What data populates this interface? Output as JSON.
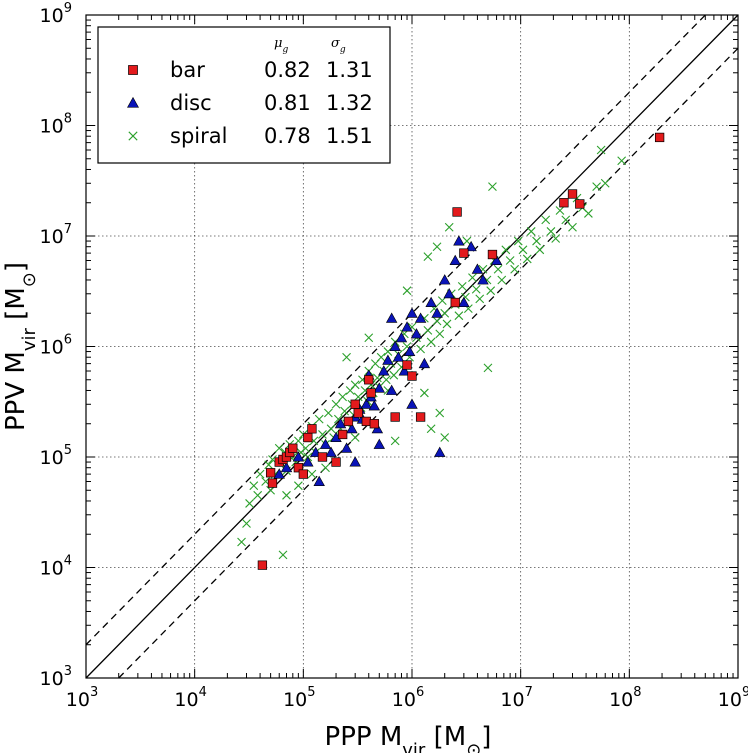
{
  "chart_data": {
    "type": "scatter",
    "xscale": "log",
    "yscale": "log",
    "xlim": [
      1000,
      1000000000
    ],
    "ylim": [
      1000,
      1000000000
    ],
    "grid": true,
    "legend_position": "top-left",
    "x_ticks": [
      {
        "value": 1000,
        "base": "10",
        "exp": "3"
      },
      {
        "value": 10000,
        "base": "10",
        "exp": "4"
      },
      {
        "value": 100000,
        "base": "10",
        "exp": "5"
      },
      {
        "value": 1000000,
        "base": "10",
        "exp": "6"
      },
      {
        "value": 10000000,
        "base": "10",
        "exp": "7"
      },
      {
        "value": 100000000,
        "base": "10",
        "exp": "8"
      },
      {
        "value": 1000000000,
        "base": "10",
        "exp": "9"
      }
    ],
    "y_ticks": [
      {
        "value": 1000,
        "base": "10",
        "exp": "3"
      },
      {
        "value": 10000,
        "base": "10",
        "exp": "4"
      },
      {
        "value": 100000,
        "base": "10",
        "exp": "5"
      },
      {
        "value": 1000000,
        "base": "10",
        "exp": "6"
      },
      {
        "value": 10000000,
        "base": "10",
        "exp": "7"
      },
      {
        "value": 100000000,
        "base": "10",
        "exp": "8"
      },
      {
        "value": 1000000000,
        "base": "10",
        "exp": "9"
      }
    ],
    "xlabel": {
      "main": "PPP  M",
      "sub": "vir",
      "unit_open": "  [M",
      "unit_sub": "⊙",
      "unit_close": "]"
    },
    "ylabel": {
      "main": "PPV  M",
      "sub": "vir",
      "unit_open": "  [M",
      "unit_sub": "⊙",
      "unit_close": "]"
    },
    "lines": [
      {
        "name": "one-to-one",
        "style": "solid",
        "color": "#000000",
        "factor": 1
      },
      {
        "name": "upper-bound",
        "style": "dashed",
        "color": "#000000",
        "factor": 2
      },
      {
        "name": "lower-bound",
        "style": "dashed",
        "color": "#000000",
        "factor": 0.5
      }
    ],
    "legend": {
      "headers": {
        "mu": "μ",
        "mu_sub": "g",
        "sigma": "σ",
        "sigma_sub": "g"
      },
      "entries": [
        {
          "label": "bar",
          "mu": "0.82",
          "sigma": "1.31",
          "marker": "square",
          "color": "#e31a1c"
        },
        {
          "label": "disc",
          "mu": "0.81",
          "sigma": "1.32",
          "marker": "triangle",
          "color": "#0a14b8"
        },
        {
          "label": "spiral",
          "mu": "0.78",
          "sigma": "1.51",
          "marker": "x",
          "color": "#2ca02c"
        }
      ]
    },
    "series": [
      {
        "name": "bar",
        "marker": "square",
        "color": "#e31a1c",
        "points": [
          [
            42000,
            10500
          ],
          [
            50000,
            72000
          ],
          [
            52000,
            58000
          ],
          [
            60000,
            90000
          ],
          [
            65000,
            95000
          ],
          [
            70000,
            100000
          ],
          [
            75000,
            110000
          ],
          [
            80000,
            120000
          ],
          [
            90000,
            80000
          ],
          [
            100000,
            70000
          ],
          [
            110000,
            150000
          ],
          [
            120000,
            180000
          ],
          [
            150000,
            100000
          ],
          [
            200000,
            90000
          ],
          [
            230000,
            160000
          ],
          [
            260000,
            210000
          ],
          [
            300000,
            300000
          ],
          [
            320000,
            250000
          ],
          [
            380000,
            210000
          ],
          [
            400000,
            500000
          ],
          [
            420000,
            380000
          ],
          [
            450000,
            200000
          ],
          [
            700000,
            230000
          ],
          [
            900000,
            680000
          ],
          [
            1000000,
            540000
          ],
          [
            1200000,
            230000
          ],
          [
            2500000,
            2500000
          ],
          [
            2600000,
            16500000
          ],
          [
            3000000,
            7000000
          ],
          [
            5500000,
            6800000
          ],
          [
            25000000,
            20000000
          ],
          [
            30000000,
            24000000
          ],
          [
            35000000,
            19500000
          ],
          [
            190000000,
            78000000
          ]
        ]
      },
      {
        "name": "disc",
        "marker": "triangle",
        "color": "#0a14b8",
        "points": [
          [
            70000,
            80000
          ],
          [
            90000,
            100000
          ],
          [
            110000,
            90000
          ],
          [
            130000,
            110000
          ],
          [
            160000,
            130000
          ],
          [
            180000,
            110000
          ],
          [
            200000,
            150000
          ],
          [
            220000,
            200000
          ],
          [
            250000,
            120000
          ],
          [
            280000,
            180000
          ],
          [
            300000,
            230000
          ],
          [
            330000,
            270000
          ],
          [
            350000,
            220000
          ],
          [
            380000,
            300000
          ],
          [
            420000,
            350000
          ],
          [
            450000,
            290000
          ],
          [
            480000,
            180000
          ],
          [
            500000,
            420000
          ],
          [
            550000,
            600000
          ],
          [
            600000,
            750000
          ],
          [
            650000,
            400000
          ],
          [
            700000,
            1000000
          ],
          [
            750000,
            800000
          ],
          [
            800000,
            1200000
          ],
          [
            850000,
            600000
          ],
          [
            900000,
            1500000
          ],
          [
            950000,
            900000
          ],
          [
            1000000,
            2000000
          ],
          [
            1100000,
            1300000
          ],
          [
            1200000,
            1800000
          ],
          [
            1300000,
            700000
          ],
          [
            1500000,
            2500000
          ],
          [
            1700000,
            2000000
          ],
          [
            1800000,
            110000
          ],
          [
            2000000,
            4000000
          ],
          [
            2200000,
            3000000
          ],
          [
            2500000,
            6000000
          ],
          [
            2700000,
            9000000
          ],
          [
            3000000,
            2500000
          ],
          [
            3500000,
            8000000
          ],
          [
            4000000,
            5000000
          ],
          [
            4500000,
            4000000
          ],
          [
            6000000,
            6000000
          ],
          [
            650000,
            1800000
          ],
          [
            400000,
            550000
          ],
          [
            60000,
            70000
          ],
          [
            140000,
            60000
          ],
          [
            300000,
            90000
          ],
          [
            500000,
            130000
          ],
          [
            1000000,
            300000
          ]
        ]
      },
      {
        "name": "spiral",
        "marker": "x",
        "color": "#2ca02c",
        "points": [
          [
            27000,
            17000
          ],
          [
            30000,
            25000
          ],
          [
            32000,
            38000
          ],
          [
            35000,
            55000
          ],
          [
            38000,
            45000
          ],
          [
            40000,
            70000
          ],
          [
            45000,
            60000
          ],
          [
            48000,
            85000
          ],
          [
            50000,
            50000
          ],
          [
            52000,
            95000
          ],
          [
            55000,
            70000
          ],
          [
            60000,
            120000
          ],
          [
            62000,
            90000
          ],
          [
            65000,
            13000
          ],
          [
            68000,
            110000
          ],
          [
            70000,
            75000
          ],
          [
            75000,
            130000
          ],
          [
            80000,
            100000
          ],
          [
            85000,
            90000
          ],
          [
            90000,
            140000
          ],
          [
            95000,
            110000
          ],
          [
            100000,
            160000
          ],
          [
            105000,
            120000
          ],
          [
            110000,
            100000
          ],
          [
            120000,
            190000
          ],
          [
            125000,
            140000
          ],
          [
            130000,
            110000
          ],
          [
            140000,
            220000
          ],
          [
            150000,
            160000
          ],
          [
            160000,
            130000
          ],
          [
            170000,
            250000
          ],
          [
            180000,
            180000
          ],
          [
            190000,
            150000
          ],
          [
            200000,
            300000
          ],
          [
            210000,
            220000
          ],
          [
            220000,
            180000
          ],
          [
            230000,
            350000
          ],
          [
            240000,
            260000
          ],
          [
            250000,
            200000
          ],
          [
            270000,
            400000
          ],
          [
            280000,
            300000
          ],
          [
            290000,
            240000
          ],
          [
            300000,
            450000
          ],
          [
            320000,
            350000
          ],
          [
            340000,
            280000
          ],
          [
            350000,
            500000
          ],
          [
            370000,
            400000
          ],
          [
            390000,
            320000
          ],
          [
            400000,
            600000
          ],
          [
            420000,
            450000
          ],
          [
            440000,
            380000
          ],
          [
            460000,
            700000
          ],
          [
            480000,
            520000
          ],
          [
            500000,
            430000
          ],
          [
            520000,
            800000
          ],
          [
            550000,
            600000
          ],
          [
            580000,
            500000
          ],
          [
            600000,
            900000
          ],
          [
            640000,
            700000
          ],
          [
            680000,
            550000
          ],
          [
            700000,
            1100000
          ],
          [
            750000,
            850000
          ],
          [
            800000,
            650000
          ],
          [
            850000,
            1300000
          ],
          [
            900000,
            1000000
          ],
          [
            950000,
            800000
          ],
          [
            1000000,
            1500000
          ],
          [
            1100000,
            1200000
          ],
          [
            1200000,
            950000
          ],
          [
            1300000,
            1800000
          ],
          [
            1400000,
            1400000
          ],
          [
            1500000,
            1100000
          ],
          [
            1600000,
            2200000
          ],
          [
            1700000,
            1700000
          ],
          [
            1800000,
            1300000
          ],
          [
            1900000,
            2600000
          ],
          [
            2000000,
            2000000
          ],
          [
            2100000,
            1600000
          ],
          [
            2300000,
            3000000
          ],
          [
            2500000,
            2400000
          ],
          [
            2700000,
            1900000
          ],
          [
            2900000,
            3500000
          ],
          [
            3100000,
            2800000
          ],
          [
            3300000,
            2200000
          ],
          [
            3600000,
            4200000
          ],
          [
            3900000,
            3300000
          ],
          [
            4200000,
            2700000
          ],
          [
            4500000,
            5000000
          ],
          [
            4900000,
            4000000
          ],
          [
            5300000,
            3200000
          ],
          [
            5700000,
            6000000
          ],
          [
            6200000,
            5000000
          ],
          [
            6700000,
            4000000
          ],
          [
            7300000,
            7500000
          ],
          [
            8000000,
            6000000
          ],
          [
            8800000,
            5000000
          ],
          [
            9500000,
            9000000
          ],
          [
            10500000,
            7500000
          ],
          [
            11500000,
            6200000
          ],
          [
            12500000,
            11000000
          ],
          [
            14000000,
            9000000
          ],
          [
            15000000,
            7500000
          ],
          [
            17000000,
            14000000
          ],
          [
            19000000,
            11000000
          ],
          [
            21000000,
            9500000
          ],
          [
            23000000,
            17000000
          ],
          [
            26000000,
            14000000
          ],
          [
            30000000,
            12000000
          ],
          [
            33000000,
            22000000
          ],
          [
            37000000,
            18000000
          ],
          [
            42000000,
            16000000
          ],
          [
            50000000,
            28000000
          ],
          [
            55000000,
            60000000
          ],
          [
            60000000,
            30000000
          ],
          [
            85000000,
            48000000
          ],
          [
            5000000,
            640000
          ],
          [
            5500000,
            28000000
          ],
          [
            2200000,
            12000000
          ],
          [
            1700000,
            8000000
          ],
          [
            1500000,
            180000
          ],
          [
            1800000,
            250000
          ],
          [
            2000000,
            150000
          ],
          [
            1300000,
            380000
          ],
          [
            600000,
            400000
          ],
          [
            700000,
            140000
          ],
          [
            250000,
            800000
          ],
          [
            400000,
            1200000
          ],
          [
            900000,
            3200000
          ],
          [
            1400000,
            6500000
          ],
          [
            3200000,
            9000000
          ],
          [
            300000,
            150000
          ],
          [
            160000,
            80000
          ],
          [
            90000,
            55000
          ],
          [
            70000,
            45000
          ],
          [
            120000,
            70000
          ]
        ]
      }
    ]
  }
}
